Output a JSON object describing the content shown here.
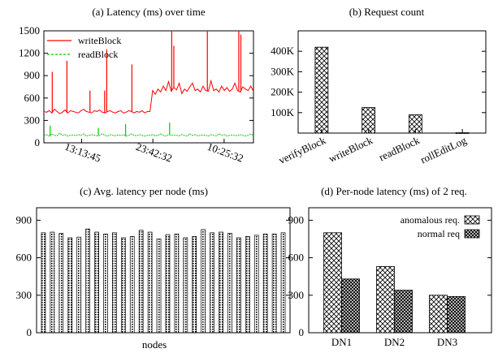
{
  "chart_data": [
    {
      "id": "a",
      "type": "line",
      "title": "(a) Latency (ms) over time",
      "ylim": [
        0,
        1500
      ],
      "yticks": [
        0,
        300,
        600,
        900,
        1200,
        1500
      ],
      "x_tick_labels": [
        "13:13:45",
        "23:42:32",
        "10:25:32"
      ],
      "x_tick_positions": [
        0.18,
        0.52,
        0.86
      ],
      "series": [
        {
          "name": "writeBlock",
          "color": "#ff0000",
          "values": [
            420,
            410,
            430,
            400,
            450,
            420,
            390,
            410,
            440,
            400,
            430,
            420,
            410,
            400,
            430,
            450,
            420,
            410,
            400,
            430,
            420,
            440,
            410,
            400,
            420,
            430,
            410,
            400,
            420,
            430,
            400,
            410,
            430,
            420,
            400,
            420,
            410,
            430,
            400,
            420,
            420,
            700,
            650,
            720,
            680,
            760,
            700,
            820,
            690,
            740,
            710,
            800,
            660,
            720,
            690,
            750,
            800,
            700,
            720,
            680,
            760,
            700,
            690,
            830,
            700,
            720,
            680,
            760,
            700,
            740,
            690,
            720,
            800,
            700,
            680,
            750,
            720,
            700,
            760,
            690
          ]
        },
        {
          "name": "readBlock",
          "color": "#00cc00",
          "values": [
            100,
            110,
            90,
            120,
            100,
            95,
            130,
            100,
            110,
            90,
            100,
            105,
            95,
            110,
            100,
            120,
            90,
            100,
            110,
            100,
            95,
            100,
            120,
            100,
            90,
            110,
            100,
            95,
            105,
            100,
            110,
            90,
            100,
            120,
            100,
            95,
            110,
            100,
            90,
            100,
            100,
            110,
            95,
            100,
            120,
            100,
            90,
            110,
            100,
            105,
            100,
            95,
            110,
            100,
            90,
            120,
            100,
            110,
            95,
            100,
            105,
            100,
            90,
            110,
            100,
            95,
            120,
            100,
            110,
            90,
            100,
            105,
            100,
            95,
            110,
            100,
            90,
            100,
            120,
            100
          ]
        }
      ],
      "spikes": [
        {
          "series": 0,
          "at": 0.04,
          "value": 950
        },
        {
          "series": 0,
          "at": 0.11,
          "value": 1100
        },
        {
          "series": 0,
          "at": 0.22,
          "value": 700
        },
        {
          "series": 0,
          "at": 0.29,
          "value": 700
        },
        {
          "series": 0,
          "at": 0.3,
          "value": 1250
        },
        {
          "series": 0,
          "at": 0.42,
          "value": 1050
        },
        {
          "series": 0,
          "at": 0.61,
          "value": 1500
        },
        {
          "series": 0,
          "at": 0.62,
          "value": 1300
        },
        {
          "series": 0,
          "at": 0.78,
          "value": 1500
        },
        {
          "series": 0,
          "at": 0.93,
          "value": 1500
        },
        {
          "series": 0,
          "at": 0.94,
          "value": 1450
        },
        {
          "series": 1,
          "at": 0.03,
          "value": 230
        },
        {
          "series": 1,
          "at": 0.26,
          "value": 200
        },
        {
          "series": 1,
          "at": 0.39,
          "value": 250
        },
        {
          "series": 1,
          "at": 0.6,
          "value": 270
        }
      ]
    },
    {
      "id": "b",
      "type": "bar",
      "title": "(b) Request count",
      "categories": [
        "verifyBlock",
        "writeBlock",
        "readBlock",
        "rollEditLog"
      ],
      "values": [
        420000,
        125000,
        90000,
        2000
      ],
      "ylim": [
        0,
        500000
      ],
      "yticks": [
        100000,
        200000,
        300000,
        400000
      ],
      "ytick_labels": [
        "100K",
        "200K",
        "300K",
        "400K"
      ]
    },
    {
      "id": "c",
      "type": "bar",
      "title": "(c) Avg. latency per node (ms)",
      "xlabel": "nodes",
      "ylim": [
        0,
        1000
      ],
      "yticks": [
        0,
        300,
        600,
        900
      ],
      "values": [
        800,
        805,
        795,
        760,
        765,
        830,
        805,
        790,
        800,
        760,
        770,
        820,
        805,
        750,
        785,
        790,
        760,
        770,
        825,
        800,
        805,
        795,
        760,
        770,
        780,
        790,
        790,
        800
      ]
    },
    {
      "id": "d",
      "type": "bar",
      "title": "(d) Per-node latency (ms) of 2 req.",
      "categories": [
        "DN1",
        "DN2",
        "DN3"
      ],
      "ylim": [
        0,
        1000
      ],
      "yticks": [
        0,
        300,
        600,
        900
      ],
      "legend_position": "top-right",
      "series": [
        {
          "name": "anomalous req.",
          "values": [
            800,
            530,
            300
          ]
        },
        {
          "name": "normal req",
          "values": [
            430,
            340,
            290
          ]
        }
      ]
    }
  ]
}
